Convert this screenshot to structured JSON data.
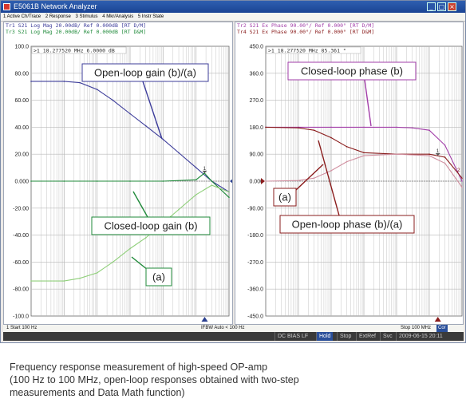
{
  "window": {
    "title": "E5061B Network Analyzer",
    "buttons": [
      "_",
      "▢",
      "×"
    ]
  },
  "menu": [
    "1 Active Ch/Trace",
    "2 Response",
    "3 Stimulus",
    "4 Mkr/Analysis",
    "5 Instr State"
  ],
  "left_panel": {
    "trace_header_1": "Tr1 S21 Log Mag 20.00dB/ Ref 0.000dB [RT D/M]",
    "trace_header_2": "Tr3 S21 Log Mag 20.00dB/ Ref 0.000dB [RT D&M]",
    "marker_readout": ">1  18.277520 MHz  6.0000 dB",
    "ref_label": "0.000",
    "ref_marker": "▶",
    "marker_number": "1",
    "callouts": {
      "open_loop_gain": "Open-loop gain (b)/(a)",
      "closed_loop_gain": "Closed-loop gain (b)",
      "a": "(a)"
    }
  },
  "right_panel": {
    "trace_header_1": "Tr2 S21 Ex Phase 90.00°/ Ref 0.000° [RT D/M]",
    "trace_header_2": "Tr4 S21 Ex Phase 90.00°/ Ref 0.000° [RT D&M]",
    "marker_readout": ">1  18.277520 MHz  85.361 °",
    "ref_label": "0.000",
    "ref_marker": "◀",
    "marker_number": "1",
    "trace_number": "2",
    "callouts": {
      "closed_loop_phase": "Closed-loop phase (b)",
      "open_loop_phase": "Open-loop phase (b)/(a)",
      "a": "(a)"
    }
  },
  "status": {
    "start": "1  Start 100 Hz",
    "ifbw": "IFBW Auto < 100 Hz",
    "stop": "Stop 100 MHz",
    "cor": "Cor"
  },
  "bottom": {
    "mode": "DC BIAS LF",
    "hold": "Hold",
    "stop": "Stop",
    "extref": "ExtRef",
    "svc": "Svc",
    "datetime": "2009-06-15 20:11"
  },
  "caption": [
    "Frequency response measurement of high-speed OP-amp",
    "(100 Hz to 100 MHz, open-loop responses obtained with two-step",
    "measurements and Data Math function)"
  ],
  "colors": {
    "open_loop_gain": "#3c3c9a",
    "closed_loop_gain": "#1f8a3a",
    "a_gain": "#8fcf7a",
    "closed_loop_phase": "#a23ea8",
    "open_loop_phase": "#8a1c1c",
    "a_phase": "#d090a0",
    "grid": "#b8b8b8"
  },
  "chart_data": [
    {
      "type": "line",
      "x_scale": "log",
      "x_range": [
        "100 Hz",
        "100 MHz"
      ],
      "ylim": [
        -100,
        100
      ],
      "y_ticks": [
        "100.0",
        "80.00",
        "60.00",
        "40.00",
        "20.00",
        "0.000",
        "-20.00",
        "-40.00",
        "-60.00",
        "-80.00",
        "-100.0"
      ],
      "unit": "dB",
      "series": [
        {
          "name": "Open-loop gain (b)/(a)",
          "color": "#3c3c9a",
          "x": [
            100,
            1000,
            3000,
            10000,
            30000,
            100000,
            300000,
            1000000,
            3000000,
            10000000,
            30000000,
            100000000
          ],
          "values": [
            74,
            74,
            73,
            68,
            60,
            50,
            41,
            31,
            21,
            10,
            0,
            -8
          ]
        },
        {
          "name": "Closed-loop gain (b)",
          "color": "#1f8a3a",
          "x": [
            100,
            1000,
            10000,
            100000,
            1000000,
            10000000,
            18000000,
            30000000,
            100000000
          ],
          "values": [
            0,
            0,
            0,
            0,
            0,
            1,
            6,
            0,
            -12
          ]
        },
        {
          "name": "(a)",
          "color": "#8fcf7a",
          "x": [
            100,
            1000,
            3000,
            10000,
            30000,
            100000,
            300000,
            1000000,
            3000000,
            10000000,
            30000000,
            100000000
          ],
          "values": [
            -74,
            -74,
            -72,
            -68,
            -60,
            -50,
            -42,
            -31,
            -21,
            -10,
            -3,
            -8
          ]
        }
      ]
    },
    {
      "type": "line",
      "x_scale": "log",
      "x_range": [
        "100 Hz",
        "100 MHz"
      ],
      "ylim": [
        -450,
        450
      ],
      "y_ticks": [
        "450.0",
        "360.0",
        "270.0",
        "180.0",
        "90.00",
        "0.000",
        "-90.00",
        "-180.0",
        "-270.0",
        "-360.0",
        "-450.0"
      ],
      "unit": "°",
      "series": [
        {
          "name": "Closed-loop phase (b)",
          "color": "#a23ea8",
          "x": [
            100,
            1000,
            10000,
            100000,
            1000000,
            3000000,
            10000000,
            30000000,
            100000000
          ],
          "values": [
            180,
            180,
            180,
            180,
            180,
            178,
            170,
            120,
            0
          ]
        },
        {
          "name": "Open-loop phase (b)/(a)",
          "color": "#8a1c1c",
          "x": [
            100,
            1000,
            3000,
            10000,
            30000,
            100000,
            1000000,
            10000000,
            30000000,
            100000000
          ],
          "values": [
            180,
            178,
            170,
            145,
            115,
            95,
            90,
            90,
            80,
            10
          ]
        },
        {
          "name": "(a)",
          "color": "#d090a0",
          "x": [
            100,
            1000,
            3000,
            10000,
            30000,
            100000,
            1000000,
            10000000,
            30000000,
            100000000
          ],
          "values": [
            0,
            2,
            10,
            35,
            65,
            85,
            90,
            85,
            60,
            -20
          ]
        }
      ]
    }
  ]
}
